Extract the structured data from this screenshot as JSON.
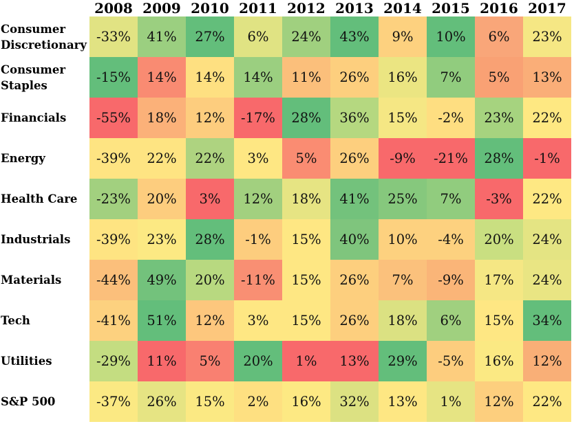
{
  "chart_data": {
    "type": "heatmap",
    "title": "",
    "xlabel": "",
    "ylabel": "",
    "columns": [
      "2008",
      "2009",
      "2010",
      "2011",
      "2012",
      "2013",
      "2014",
      "2015",
      "2016",
      "2017"
    ],
    "rows": [
      {
        "label": "Consumer Discretionary",
        "values": [
          "-33%",
          "41%",
          "27%",
          "6%",
          "24%",
          "43%",
          "9%",
          "10%",
          "6%",
          "23%"
        ],
        "colors": [
          "#e1e383",
          "#9bcf80",
          "#63be7b",
          "#e0e383",
          "#a0d07f",
          "#63be7b",
          "#fdd17f",
          "#63be7b",
          "#f9a679",
          "#f5e784"
        ]
      },
      {
        "label": "Consumer Staples",
        "values": [
          "-15%",
          "14%",
          "14%",
          "14%",
          "11%",
          "26%",
          "16%",
          "7%",
          "5%",
          "13%"
        ],
        "colors": [
          "#63be7b",
          "#f98b72",
          "#fee081",
          "#9bcf80",
          "#fbbf7b",
          "#fdcf7e",
          "#ebe582",
          "#91cc7e",
          "#f9a174",
          "#faae78"
        ]
      },
      {
        "label": "Financials",
        "values": [
          "-55%",
          "18%",
          "12%",
          "-17%",
          "28%",
          "36%",
          "15%",
          "-2%",
          "23%",
          "22%"
        ],
        "colors": [
          "#f8696b",
          "#fbb179",
          "#fdcd7e",
          "#f8696b",
          "#63be7b",
          "#b5d880",
          "#f5e784",
          "#fede81",
          "#a6d37f",
          "#fee882"
        ]
      },
      {
        "label": "Energy",
        "values": [
          "-39%",
          "22%",
          "22%",
          "3%",
          "5%",
          "26%",
          "-9%",
          "-21%",
          "28%",
          "-1%"
        ],
        "colors": [
          "#fee482",
          "#fee482",
          "#aed380",
          "#fee783",
          "#fa8c72",
          "#fdcf7e",
          "#f8696b",
          "#f8696b",
          "#63be7b",
          "#f8696b"
        ]
      },
      {
        "label": "Health Care",
        "values": [
          "-23%",
          "20%",
          "3%",
          "12%",
          "18%",
          "41%",
          "25%",
          "7%",
          "-3%",
          "22%"
        ],
        "colors": [
          "#a2d07f",
          "#fdcd7e",
          "#f8696b",
          "#a2d07f",
          "#e6e483",
          "#73c27c",
          "#86c87d",
          "#91cc7e",
          "#f8696b",
          "#fee883"
        ]
      },
      {
        "label": "Industrials",
        "values": [
          "-39%",
          "23%",
          "28%",
          "-1%",
          "15%",
          "40%",
          "10%",
          "-4%",
          "20%",
          "24%"
        ],
        "colors": [
          "#fee482",
          "#fce983",
          "#63be7b",
          "#fdcd7e",
          "#fee783",
          "#7fc57d",
          "#fdd17f",
          "#fdd17f",
          "#c9df81",
          "#e4e483"
        ]
      },
      {
        "label": "Materials",
        "values": [
          "-44%",
          "49%",
          "20%",
          "-11%",
          "15%",
          "26%",
          "7%",
          "-9%",
          "17%",
          "24%"
        ],
        "colors": [
          "#fbbf7b",
          "#73c27c",
          "#b8d980",
          "#f98f73",
          "#fee783",
          "#fdcf7e",
          "#fbc17c",
          "#fab578",
          "#f5e784",
          "#e9e583"
        ]
      },
      {
        "label": "Tech",
        "values": [
          "-41%",
          "51%",
          "12%",
          "3%",
          "15%",
          "26%",
          "18%",
          "6%",
          "15%",
          "34%"
        ],
        "colors": [
          "#fdd17f",
          "#63be7b",
          "#fdc77d",
          "#fee783",
          "#fee783",
          "#fdcf7e",
          "#dbe182",
          "#a0d07f",
          "#fee783",
          "#63be7b"
        ]
      },
      {
        "label": "Utilities",
        "values": [
          "-29%",
          "11%",
          "5%",
          "20%",
          "1%",
          "13%",
          "29%",
          "-5%",
          "16%",
          "12%"
        ],
        "colors": [
          "#c4dd81",
          "#f8696b",
          "#f98071",
          "#63be7b",
          "#f8696b",
          "#f8696b",
          "#63be7b",
          "#fdcd7e",
          "#fbe983",
          "#f9af77"
        ]
      },
      {
        "label": "S&P 500",
        "values": [
          "-37%",
          "26%",
          "15%",
          "2%",
          "16%",
          "32%",
          "13%",
          "1%",
          "12%",
          "22%"
        ],
        "colors": [
          "#fbe983",
          "#e6e483",
          "#fbe983",
          "#fee081",
          "#fde983",
          "#dce182",
          "#fee783",
          "#e6e483",
          "#fdcf7e",
          "#fee883"
        ]
      }
    ],
    "legend": "none",
    "grid": false
  }
}
